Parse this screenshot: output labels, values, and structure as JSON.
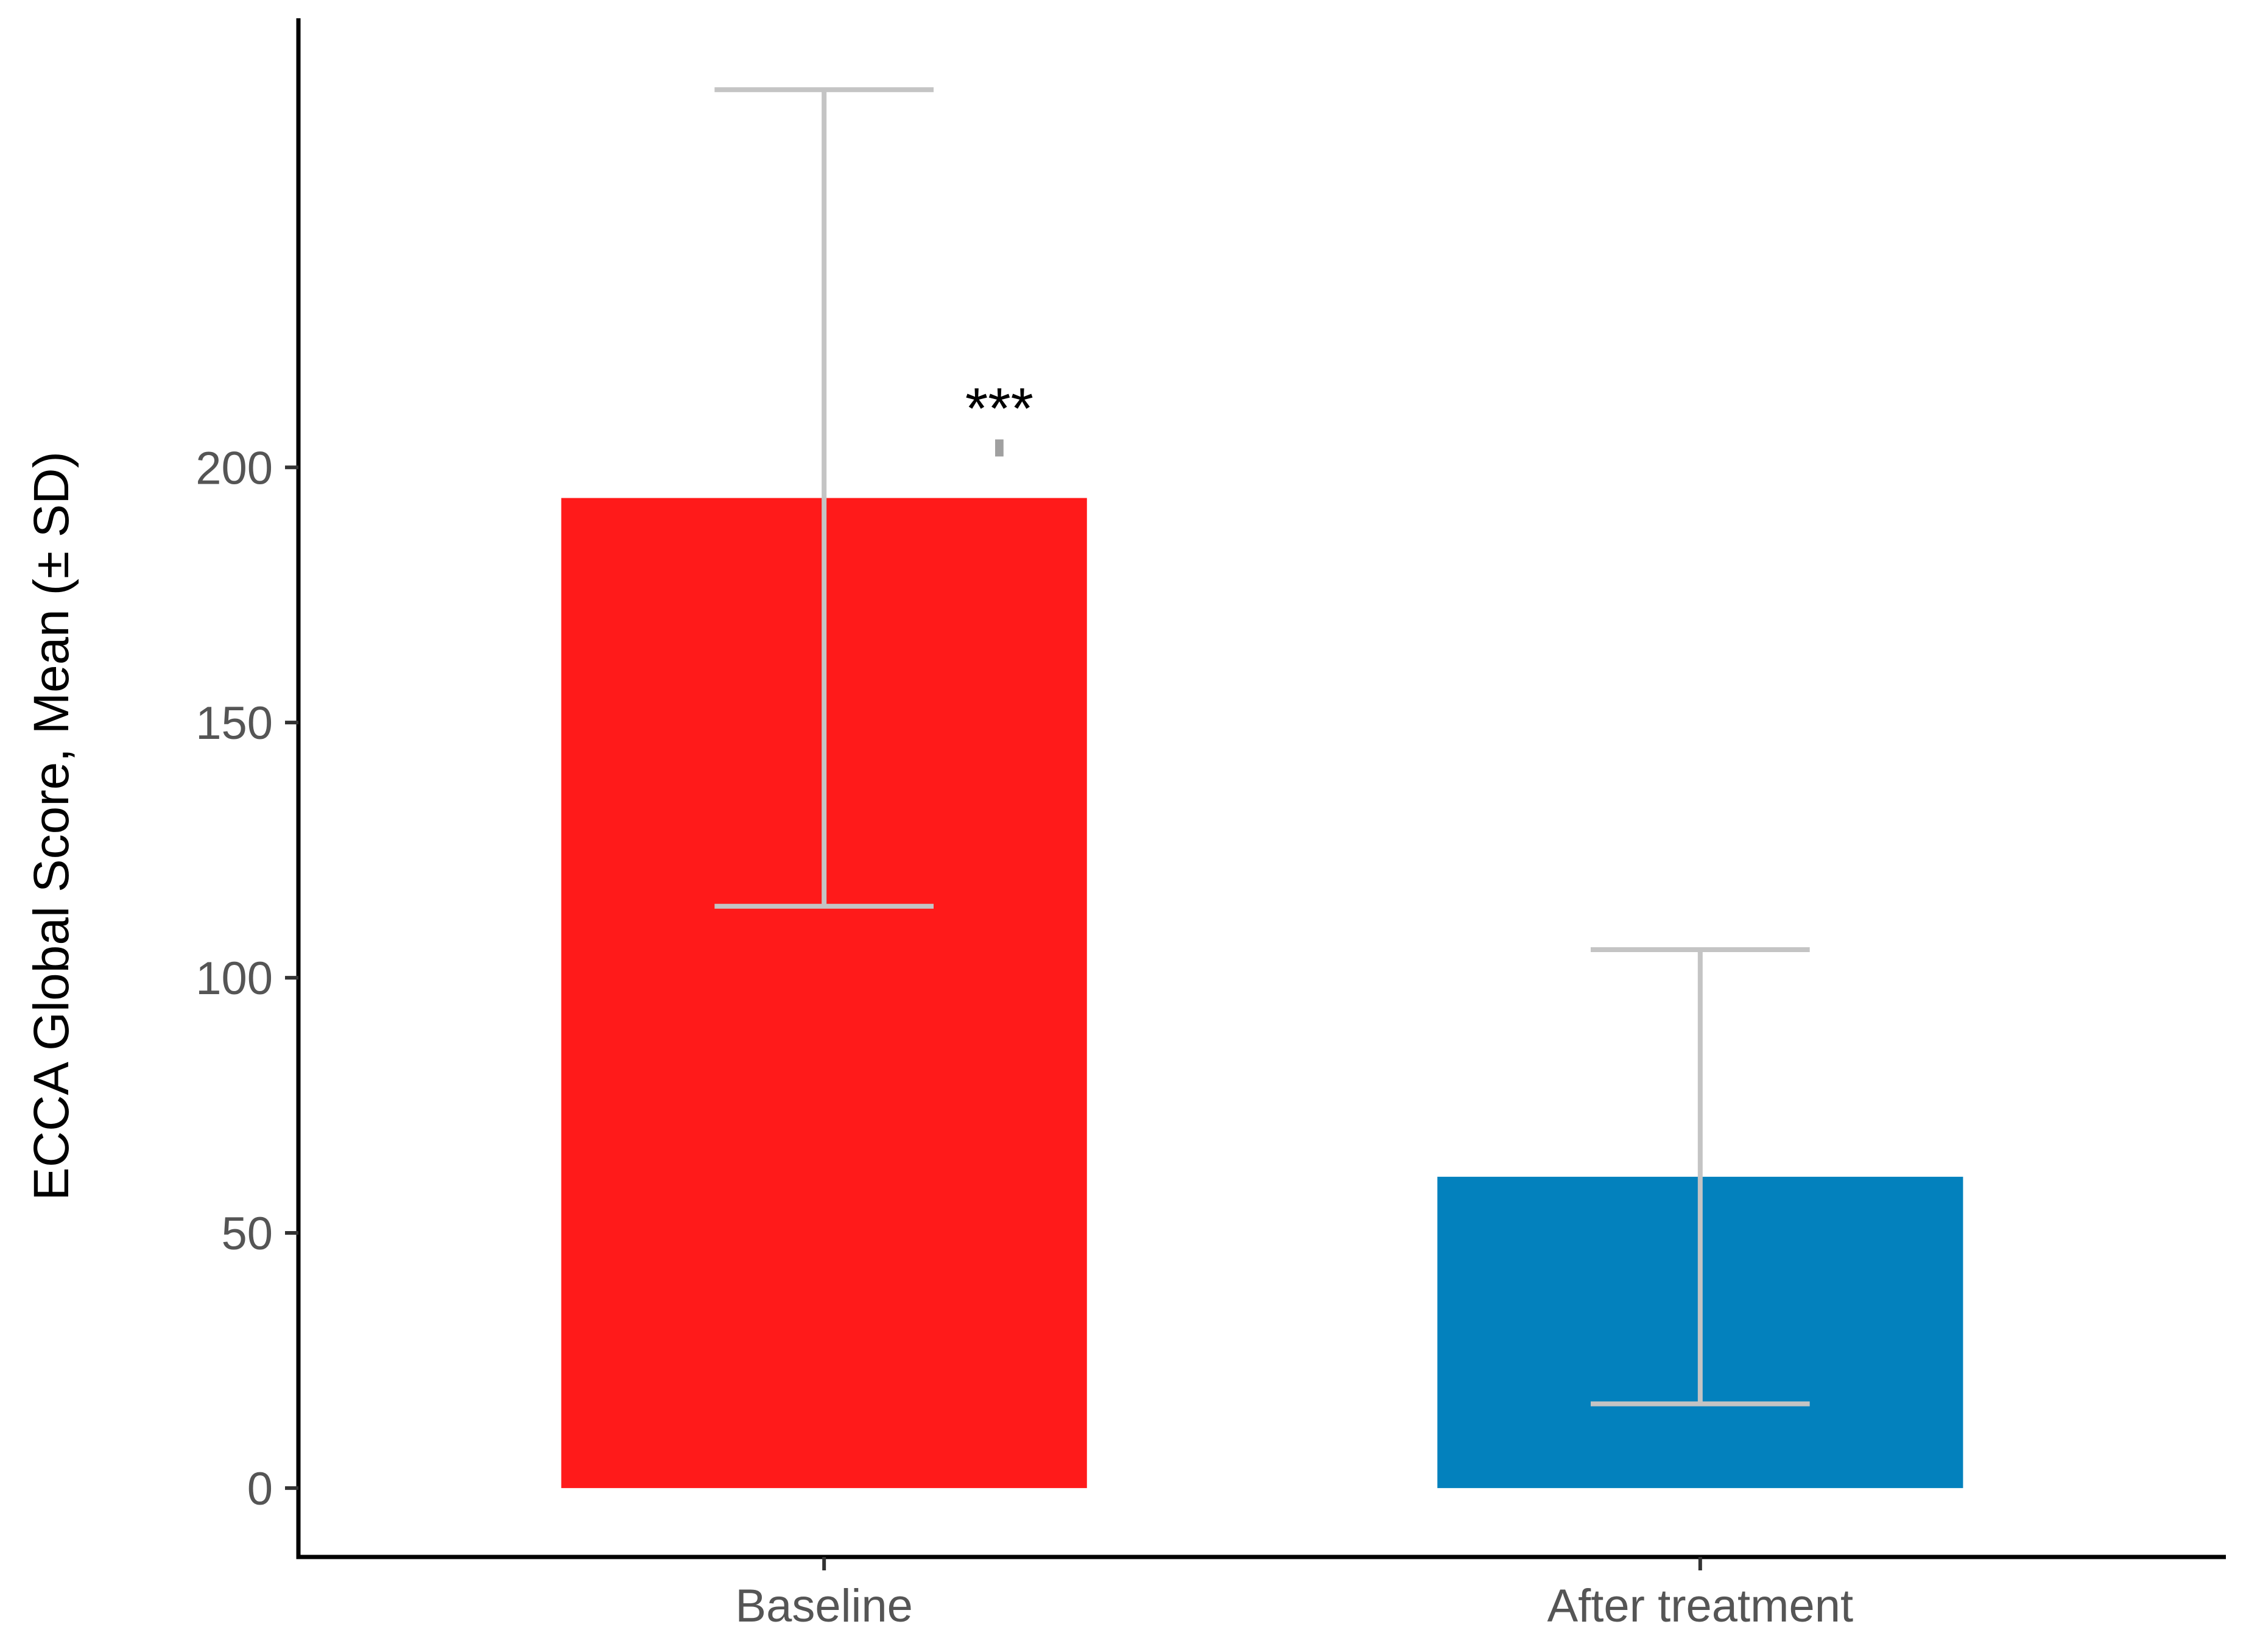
{
  "chart_data": {
    "type": "bar",
    "title": "",
    "xlabel": "",
    "ylabel": "ECCA Global Score, Mean (± SD)",
    "categories": [
      "Baseline",
      "After treatment"
    ],
    "values": [
      194,
      61
    ],
    "error_sd": [
      80,
      44.5
    ],
    "bar_colors": [
      "#ff1a1a",
      "#0381bd"
    ],
    "error_bar_color": "#c4c4c4",
    "ylim": [
      -13.5,
      288
    ],
    "yticks": [
      0,
      50,
      100,
      150,
      200
    ],
    "ytick_labels": [
      "0",
      "50",
      "100",
      "150",
      "200"
    ],
    "grid": false,
    "legend": "none",
    "significance": {
      "label": "***",
      "between": [
        0,
        1
      ],
      "y": 205,
      "color": "#a0a0a0"
    }
  }
}
